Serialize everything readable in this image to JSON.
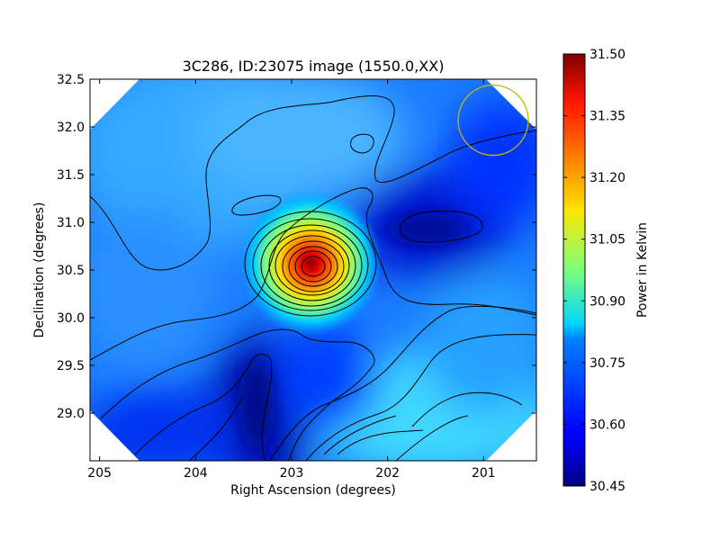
{
  "chart_data": [
    {
      "type": "heatmap",
      "title": "3C286, ID:23075 image (1550.0,XX)",
      "xlabel": "Right Ascension (degrees)",
      "ylabel": "Declination (degrees)",
      "xlim": [
        205.1,
        200.45
      ],
      "ylim": [
        28.5,
        32.5
      ],
      "x_inverted": true,
      "x_ticks": [
        205,
        204,
        203,
        202,
        201
      ],
      "y_ticks": [
        29.0,
        29.5,
        30.0,
        30.5,
        31.0,
        31.5,
        32.0,
        32.5
      ],
      "y_tick_labels": [
        "29.0",
        "29.5",
        "30.0",
        "30.5",
        "31.0",
        "31.5",
        "32.0",
        "32.5"
      ],
      "colormap": "jet",
      "value_range": [
        30.45,
        31.5
      ],
      "source_peak": {
        "ra": 202.72,
        "dec": 30.55,
        "value": 31.5
      },
      "contours": true,
      "grid": false,
      "beam_marker": {
        "ra": 200.9,
        "dec": 32.07,
        "color": "#c8b400"
      }
    },
    {
      "type": "colorbar",
      "label": "Power in Kelvin",
      "range": [
        30.45,
        31.5
      ],
      "ticks": [
        31.5,
        31.35,
        31.2,
        31.05,
        30.9,
        30.75,
        30.6,
        30.45
      ],
      "tick_labels": [
        "31.50",
        "31.35",
        "31.20",
        "31.05",
        "30.90",
        "30.75",
        "30.60",
        "30.45"
      ]
    }
  ]
}
